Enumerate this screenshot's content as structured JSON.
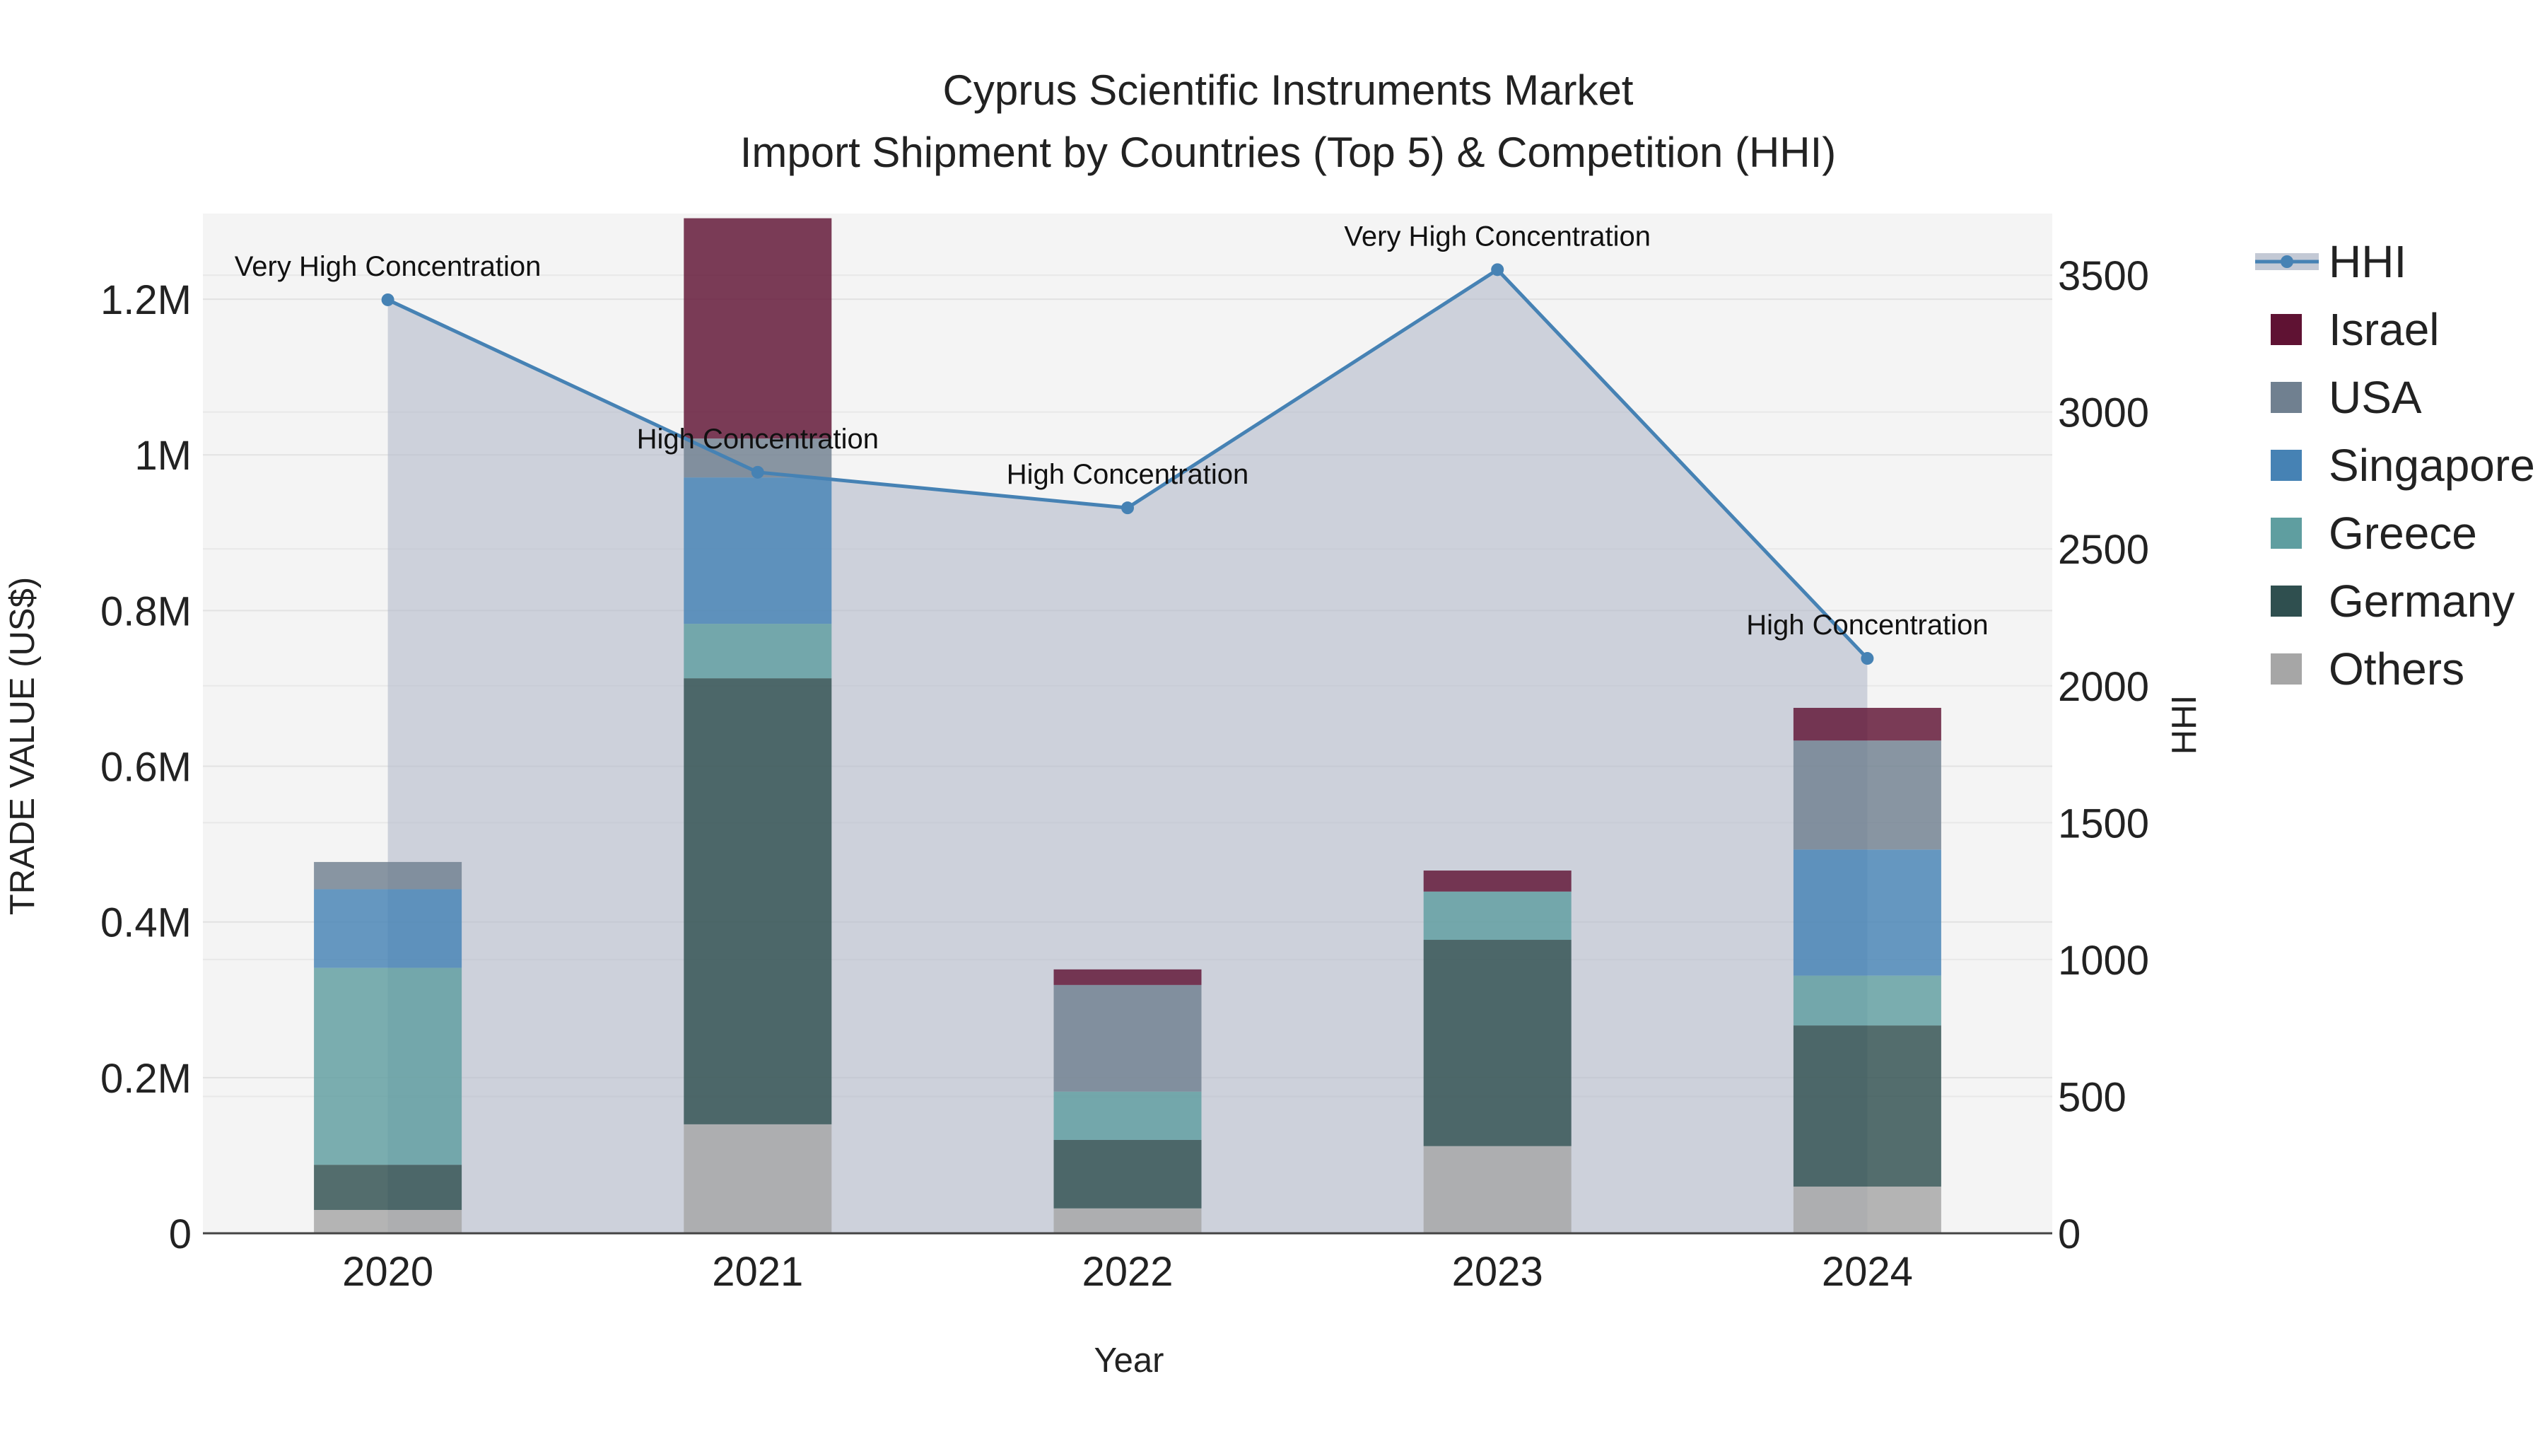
{
  "chart_data": {
    "type": "bar",
    "title": "Cyprus Scientific Instruments Market",
    "subtitle": "Import Shipment by Countries (Top 5) & Competition (HHI)",
    "xlabel": "Year",
    "ylabel": "TRADE VALUE (US$)",
    "y2label": "HHI",
    "categories": [
      "2020",
      "2021",
      "2022",
      "2023",
      "2024"
    ],
    "ylim": [
      0,
      1310000
    ],
    "y2lim": [
      0,
      3725
    ],
    "yticks": [
      {
        "value": 0,
        "label": "0"
      },
      {
        "value": 200000,
        "label": "0.2M"
      },
      {
        "value": 400000,
        "label": "0.4M"
      },
      {
        "value": 600000,
        "label": "0.6M"
      },
      {
        "value": 800000,
        "label": "0.8M"
      },
      {
        "value": 1000000,
        "label": "1M"
      },
      {
        "value": 1200000,
        "label": "1.2M"
      }
    ],
    "y2ticks": [
      {
        "value": 0,
        "label": "0"
      },
      {
        "value": 500,
        "label": "500"
      },
      {
        "value": 1000,
        "label": "1000"
      },
      {
        "value": 1500,
        "label": "1500"
      },
      {
        "value": 2000,
        "label": "2000"
      },
      {
        "value": 2500,
        "label": "2500"
      },
      {
        "value": 3000,
        "label": "3000"
      },
      {
        "value": 3500,
        "label": "3500"
      }
    ],
    "grid": true,
    "legend_position": "right",
    "series": [
      {
        "name": "Others",
        "color": "#a6a6a6",
        "values": [
          30000,
          140000,
          32000,
          112000,
          60000
        ]
      },
      {
        "name": "Germany",
        "color": "#2f4f4f",
        "values": [
          58000,
          573000,
          88000,
          265000,
          207000
        ]
      },
      {
        "name": "Greece",
        "color": "#5f9ea0",
        "values": [
          253000,
          70000,
          62000,
          62000,
          64000
        ]
      },
      {
        "name": "Singapore",
        "color": "#4682b4",
        "values": [
          101000,
          188000,
          0,
          0,
          162000
        ]
      },
      {
        "name": "USA",
        "color": "#708090",
        "values": [
          35000,
          50000,
          137000,
          0,
          140000
        ]
      },
      {
        "name": "Israel",
        "color": "#5f1233",
        "values": [
          0,
          283000,
          20000,
          27000,
          42000
        ]
      }
    ],
    "hhi": {
      "name": "HHI",
      "color": "#4682b4",
      "values": [
        3410,
        2780,
        2650,
        3520,
        2100
      ],
      "annotations": [
        "Very High Concentration",
        "High Concentration",
        "High Concentration",
        "Very High Concentration",
        "High Concentration"
      ]
    }
  }
}
